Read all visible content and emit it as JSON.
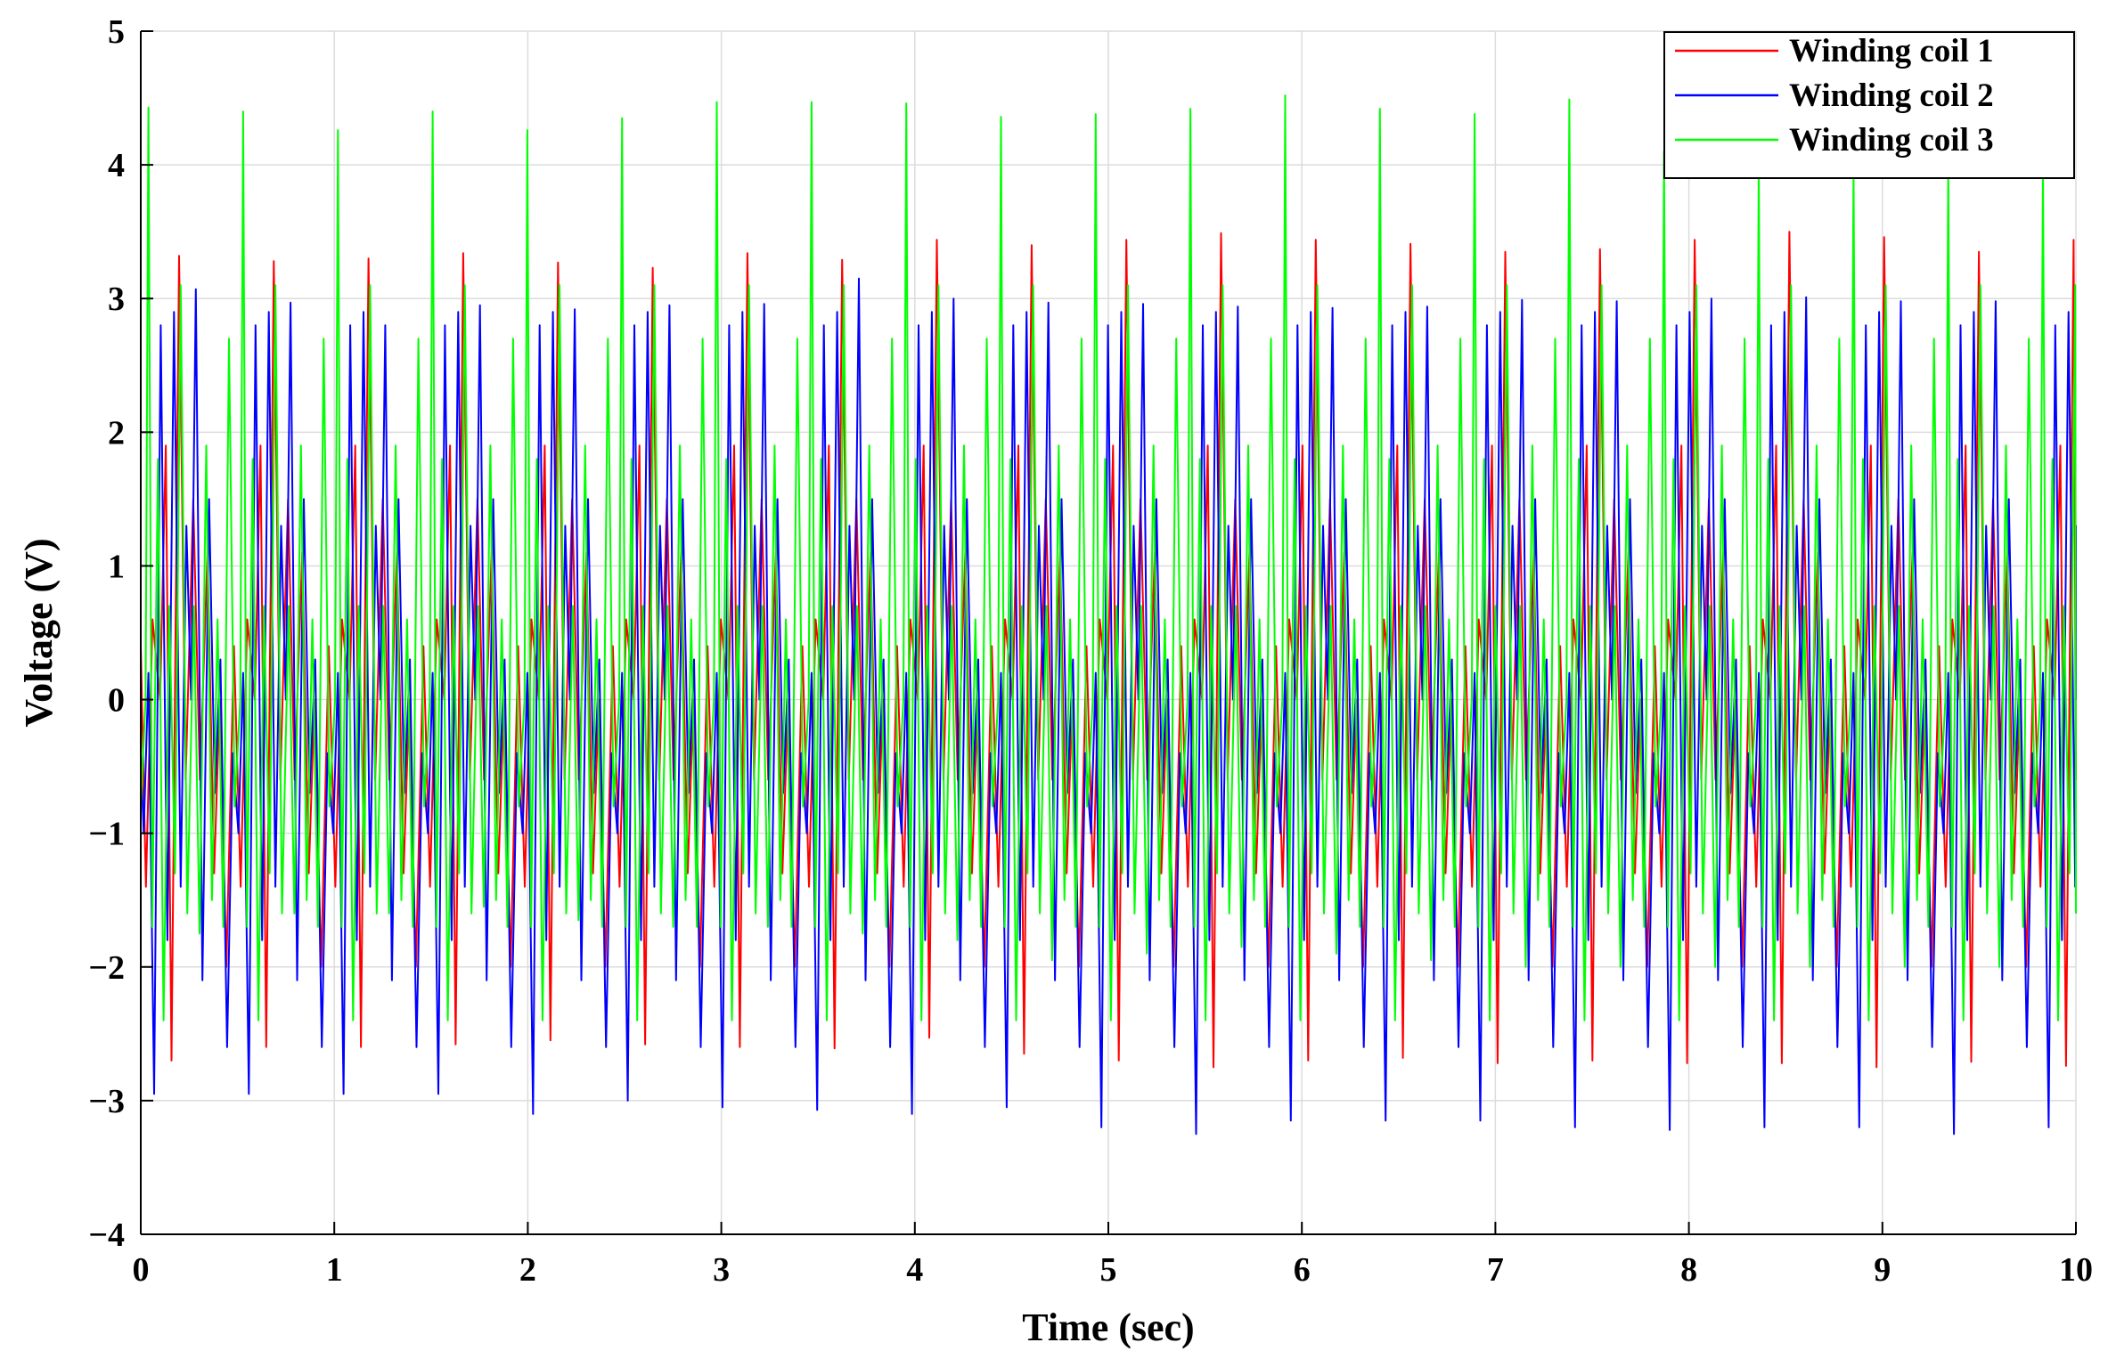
{
  "chart_data": {
    "type": "line",
    "title": "",
    "xlabel": "Time (sec)",
    "ylabel": "Voltage (V)",
    "xlim": [
      0,
      10
    ],
    "ylim": [
      -4,
      5
    ],
    "xticks": [
      0,
      1,
      2,
      3,
      4,
      5,
      6,
      7,
      8,
      9,
      10
    ],
    "xtick_labels": [
      "0",
      "1",
      "2",
      "3",
      "4",
      "5",
      "6",
      "7",
      "8",
      "9",
      "10"
    ],
    "yticks": [
      -4,
      -3,
      -2,
      -1,
      0,
      1,
      2,
      3,
      4,
      5
    ],
    "ytick_labels": [
      "−4",
      "−3",
      "−2",
      "−1",
      "0",
      "1",
      "2",
      "3",
      "4",
      "5"
    ],
    "grid": true,
    "legend_position": "top-right",
    "series": [
      {
        "name": "Winding coil 1",
        "color": "#ff0000",
        "cycle_period": 0.4895,
        "cycle_phase": 0.1,
        "cycle_shape": [
          [
            0.0,
            0.0
          ],
          [
            0.06,
            1.9
          ],
          [
            0.12,
            -2.6
          ],
          [
            0.2,
            3.3
          ],
          [
            0.27,
            -0.6
          ],
          [
            0.35,
            1.5
          ],
          [
            0.42,
            -0.6
          ],
          [
            0.5,
            1.1
          ],
          [
            0.57,
            -1.3
          ],
          [
            0.63,
            0.0
          ],
          [
            0.7,
            -2.0
          ],
          [
            0.78,
            0.4
          ],
          [
            0.85,
            -1.4
          ],
          [
            0.92,
            0.6
          ],
          [
            1.0,
            0.0
          ]
        ],
        "peak_values": [
          3.32,
          3.28,
          3.3,
          3.34,
          3.27,
          3.23,
          3.34,
          3.29,
          3.44,
          3.4,
          3.44,
          3.49,
          3.44,
          3.41,
          3.35,
          3.37,
          3.44,
          3.5,
          3.46,
          3.35,
          3.44,
          3.4,
          3.45,
          3.47,
          3.44,
          3.39,
          3.35,
          3.4,
          3.55,
          3.6
        ],
        "trough_values": [
          -2.7,
          -2.6,
          -2.6,
          -2.58,
          -2.55,
          -2.58,
          -2.6,
          -2.61,
          -2.53,
          -2.65,
          -2.7,
          -2.75,
          -2.7,
          -2.68,
          -2.72,
          -2.7,
          -2.72,
          -2.72,
          -2.75,
          -2.71,
          -2.74,
          -2.75,
          -2.75,
          -2.76,
          -2.77,
          -2.78,
          -2.8,
          -2.78,
          -2.8,
          -2.85
        ]
      },
      {
        "name": "Winding coil 2",
        "color": "#0000ff",
        "cycle_period": 0.4895,
        "cycle_phase": 0.26,
        "cycle_shape": [
          [
            0.0,
            0.0
          ],
          [
            0.05,
            3.0
          ],
          [
            0.12,
            -2.1
          ],
          [
            0.19,
            1.5
          ],
          [
            0.25,
            -0.7
          ],
          [
            0.31,
            0.3
          ],
          [
            0.38,
            -2.6
          ],
          [
            0.44,
            -0.4
          ],
          [
            0.5,
            -1.0
          ],
          [
            0.55,
            0.2
          ],
          [
            0.61,
            -2.9
          ],
          [
            0.68,
            2.8
          ],
          [
            0.75,
            -1.8
          ],
          [
            0.82,
            2.9
          ],
          [
            0.89,
            -1.4
          ],
          [
            0.95,
            1.3
          ],
          [
            1.0,
            0.0
          ]
        ],
        "peak_values": [
          3.07,
          2.97,
          2.8,
          2.95,
          2.92,
          2.95,
          2.96,
          3.15,
          3.0,
          2.97,
          2.96,
          2.94,
          2.93,
          2.94,
          2.99,
          2.98,
          3.0,
          3.01,
          2.98,
          2.98,
          3.0,
          2.99,
          3.05
        ],
        "trough_values": [
          -2.95,
          -2.95,
          -2.95,
          -3.1,
          -3.0,
          -3.05,
          -3.07,
          -3.1,
          -3.05,
          -3.2,
          -3.25,
          -3.15,
          -3.15,
          -3.15,
          -3.2,
          -3.22,
          -3.2,
          -3.2,
          -3.25,
          -3.2,
          -3.3,
          -3.25,
          -3.3
        ]
      },
      {
        "name": "Winding coil 3",
        "color": "#00ff00",
        "cycle_period": 0.4895,
        "cycle_phase": 0.025,
        "cycle_shape": [
          [
            0.0,
            0.0
          ],
          [
            0.03,
            4.4
          ],
          [
            0.07,
            -1.7
          ],
          [
            0.13,
            1.8
          ],
          [
            0.19,
            -2.4
          ],
          [
            0.25,
            0.7
          ],
          [
            0.31,
            -1.3
          ],
          [
            0.37,
            3.1
          ],
          [
            0.44,
            -1.6
          ],
          [
            0.51,
            0.7
          ],
          [
            0.57,
            -2.5
          ],
          [
            0.64,
            1.9
          ],
          [
            0.7,
            -1.5
          ],
          [
            0.76,
            0.6
          ],
          [
            0.82,
            -1.7
          ],
          [
            0.88,
            2.7
          ],
          [
            0.94,
            -0.8
          ],
          [
            1.0,
            0.0
          ]
        ],
        "peak_values": [
          4.43,
          4.4,
          4.26,
          4.4,
          4.26,
          4.35,
          4.47,
          4.47,
          4.46,
          4.36,
          4.38,
          4.42,
          4.52,
          4.42,
          4.38,
          4.49,
          4.1,
          4.0,
          4.0,
          4.0,
          4.0
        ],
        "trough_values": [
          -1.75,
          -1.6,
          -1.6,
          -1.55,
          -1.65,
          -1.7,
          -1.7,
          -1.75,
          -1.8,
          -1.95,
          -1.9,
          -1.85,
          -1.9,
          -1.95,
          -2.0,
          -2.0,
          -2.0,
          -2.0,
          -2.0,
          -2.0,
          -2.0
        ]
      }
    ]
  }
}
